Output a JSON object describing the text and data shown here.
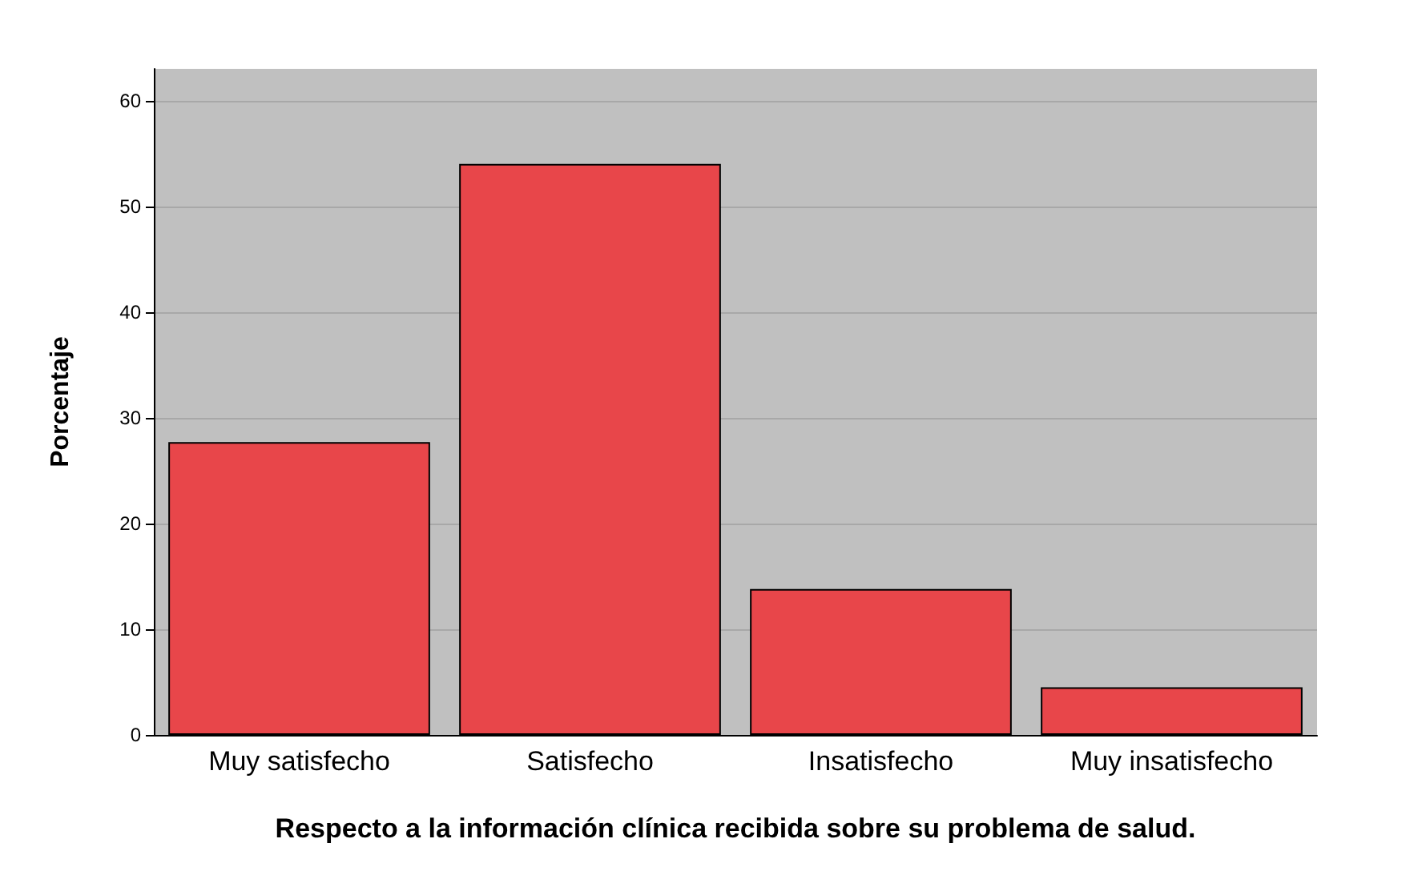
{
  "chart_data": {
    "type": "bar",
    "xlabel": "Respecto a la información clínica recibida sobre su problema de salud.",
    "ylabel": "Porcentaje",
    "categories": [
      "Muy satisfecho",
      "Satisfecho",
      "Insatisfecho",
      "Muy insatisfecho"
    ],
    "values": [
      27.7,
      54.0,
      13.8,
      4.5
    ],
    "color": "#e8464a",
    "ylim": [
      0,
      63
    ],
    "yticks": [
      0,
      10,
      20,
      30,
      40,
      50,
      60
    ],
    "grid": "y"
  }
}
